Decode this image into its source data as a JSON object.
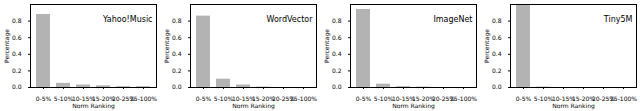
{
  "chart_data": [
    {
      "type": "bar",
      "title": "Yahoo!Music",
      "xlabel": "Norm Ranking",
      "ylabel": "Percentage",
      "categories": [
        "0-5%",
        "5-10%",
        "10-15%",
        "15-20%",
        "20-25%",
        "25-100%"
      ],
      "values": [
        0.88,
        0.05,
        0.03,
        0.02,
        0.01,
        0.01
      ],
      "color": "#b3b3b3",
      "ylim": [
        0,
        1.0
      ],
      "yticks": [
        {
          "value": 0,
          "label": "0.0"
        },
        {
          "value": 0.2,
          "label": "0.2"
        },
        {
          "value": 0.4,
          "label": "0.4"
        },
        {
          "value": 0.6,
          "label": "0.6"
        },
        {
          "value": 0.8,
          "label": "0.8"
        }
      ]
    },
    {
      "type": "bar",
      "title": "WordVector",
      "xlabel": "Norm Ranking",
      "ylabel": "Percentage",
      "categories": [
        "0-5%",
        "5-10%",
        "10-15%",
        "15-20%",
        "20-25%",
        "25-100%"
      ],
      "values": [
        0.86,
        0.1,
        0.03,
        0.005,
        0,
        0
      ],
      "color": "#b3b3b3",
      "ylim": [
        0,
        1.0
      ],
      "yticks": [
        {
          "value": 0,
          "label": "0.0"
        },
        {
          "value": 0.2,
          "label": "0.2"
        },
        {
          "value": 0.4,
          "label": "0.4"
        },
        {
          "value": 0.6,
          "label": "0.6"
        },
        {
          "value": 0.8,
          "label": "0.8"
        }
      ]
    },
    {
      "type": "bar",
      "title": "ImageNet",
      "xlabel": "Norm Ranking",
      "ylabel": "Percentage",
      "categories": [
        "0-5%",
        "5-10%",
        "10-15%",
        "15-20%",
        "20-25%",
        "25-100%"
      ],
      "values": [
        0.94,
        0.04,
        0.01,
        0.005,
        0,
        0
      ],
      "color": "#b3b3b3",
      "ylim": [
        0,
        1.0
      ],
      "yticks": [
        {
          "value": 0,
          "label": "0.0"
        },
        {
          "value": 0.2,
          "label": "0.2"
        },
        {
          "value": 0.4,
          "label": "0.4"
        },
        {
          "value": 0.6,
          "label": "0.6"
        },
        {
          "value": 0.8,
          "label": "0.8"
        }
      ]
    },
    {
      "type": "bar",
      "title": "Tiny5M",
      "xlabel": "Norm Ranking",
      "ylabel": "Percentage",
      "categories": [
        "0-5%",
        "5-10%",
        "10-15%",
        "15-20%",
        "20-25%",
        "25-100%"
      ],
      "values": [
        0.99,
        0.005,
        0,
        0,
        0,
        0
      ],
      "color": "#b3b3b3",
      "ylim": [
        0,
        1.0
      ],
      "yticks": [
        {
          "value": 0,
          "label": "0.0"
        },
        {
          "value": 0.2,
          "label": "0.2"
        },
        {
          "value": 0.4,
          "label": "0.4"
        },
        {
          "value": 0.6,
          "label": "0.6"
        },
        {
          "value": 0.8,
          "label": "0.8"
        }
      ]
    }
  ]
}
